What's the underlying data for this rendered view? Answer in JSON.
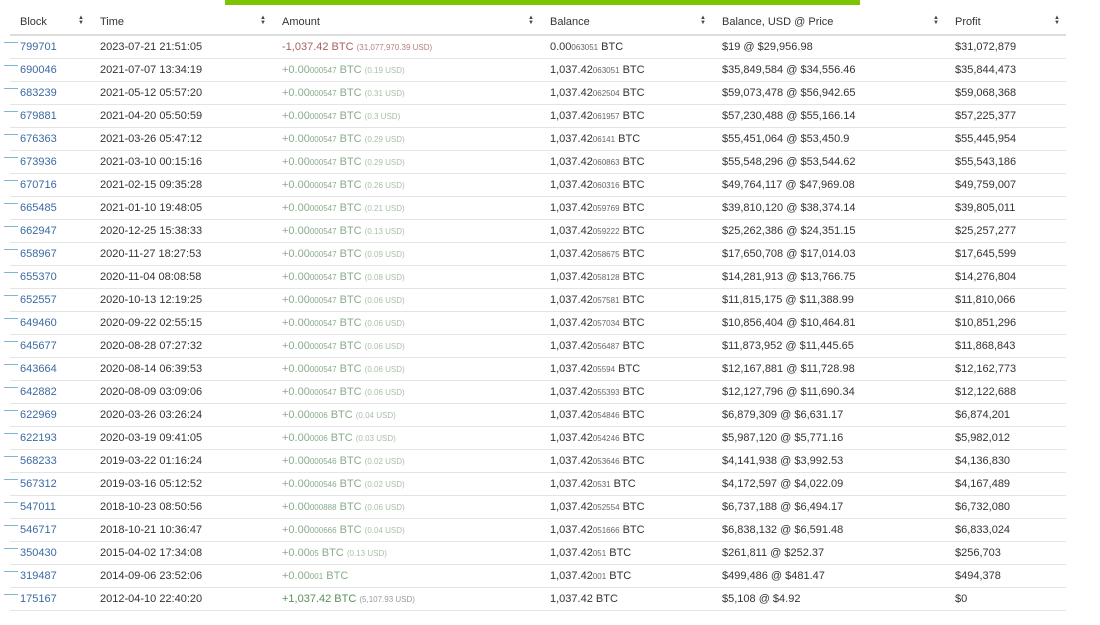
{
  "colors": {
    "accent_bar": "#7bc600",
    "link": "#3b6aa0",
    "positive": "#8aab8a",
    "negative": "#a86060"
  },
  "columns": [
    "Block",
    "Time",
    "Amount",
    "Balance",
    "Balance, USD @ Price",
    "Profit"
  ],
  "sort_icon": "sort-updown-icon",
  "rows": [
    {
      "block": "799701",
      "time": "2023-07-21 21:51:05",
      "amt_main": "-1,037.42",
      "amt_small": "",
      "amt_unit": " BTC",
      "amt_usd": "(31,077,970.39 USD)",
      "type": "neg",
      "bal_main": "0.00",
      "bal_small": "063051",
      "bal_usd": "$19 @ $29,956.98",
      "profit": "$31,072,879"
    },
    {
      "block": "690046",
      "time": "2021-07-07 13:34:19",
      "amt_main": "+0.00",
      "amt_small": "000547",
      "amt_unit": " BTC",
      "amt_usd": "(0.19 USD)",
      "type": "pos",
      "bal_main": "1,037.42",
      "bal_small": "063051",
      "bal_usd": "$35,849,584 @ $34,556.46",
      "profit": "$35,844,473"
    },
    {
      "block": "683239",
      "time": "2021-05-12 05:57:20",
      "amt_main": "+0.00",
      "amt_small": "000547",
      "amt_unit": " BTC",
      "amt_usd": "(0.31 USD)",
      "type": "pos",
      "bal_main": "1,037.42",
      "bal_small": "062504",
      "bal_usd": "$59,073,478 @ $56,942.65",
      "profit": "$59,068,368"
    },
    {
      "block": "679881",
      "time": "2021-04-20 05:50:59",
      "amt_main": "+0.00",
      "amt_small": "000547",
      "amt_unit": " BTC",
      "amt_usd": "(0.3 USD)",
      "type": "pos",
      "bal_main": "1,037.42",
      "bal_small": "061957",
      "bal_usd": "$57,230,488 @ $55,166.14",
      "profit": "$57,225,377"
    },
    {
      "block": "676363",
      "time": "2021-03-26 05:47:12",
      "amt_main": "+0.00",
      "amt_small": "000547",
      "amt_unit": " BTC",
      "amt_usd": "(0.29 USD)",
      "type": "pos",
      "bal_main": "1,037.42",
      "bal_small": "06141",
      "bal_usd": "$55,451,064 @ $53,450.9",
      "profit": "$55,445,954"
    },
    {
      "block": "673936",
      "time": "2021-03-10 00:15:16",
      "amt_main": "+0.00",
      "amt_small": "000547",
      "amt_unit": " BTC",
      "amt_usd": "(0.29 USD)",
      "type": "pos",
      "bal_main": "1,037.42",
      "bal_small": "060863",
      "bal_usd": "$55,548,296 @ $53,544.62",
      "profit": "$55,543,186"
    },
    {
      "block": "670716",
      "time": "2021-02-15 09:35:28",
      "amt_main": "+0.00",
      "amt_small": "000547",
      "amt_unit": " BTC",
      "amt_usd": "(0.26 USD)",
      "type": "pos",
      "bal_main": "1,037.42",
      "bal_small": "060316",
      "bal_usd": "$49,764,117 @ $47,969.08",
      "profit": "$49,759,007"
    },
    {
      "block": "665485",
      "time": "2021-01-10 19:48:05",
      "amt_main": "+0.00",
      "amt_small": "000547",
      "amt_unit": " BTC",
      "amt_usd": "(0.21 USD)",
      "type": "pos",
      "bal_main": "1,037.42",
      "bal_small": "059769",
      "bal_usd": "$39,810,120 @ $38,374.14",
      "profit": "$39,805,011"
    },
    {
      "block": "662947",
      "time": "2020-12-25 15:38:33",
      "amt_main": "+0.00",
      "amt_small": "000547",
      "amt_unit": " BTC",
      "amt_usd": "(0.13 USD)",
      "type": "pos",
      "bal_main": "1,037.42",
      "bal_small": "059222",
      "bal_usd": "$25,262,386 @ $24,351.15",
      "profit": "$25,257,277"
    },
    {
      "block": "658967",
      "time": "2020-11-27 18:27:53",
      "amt_main": "+0.00",
      "amt_small": "000547",
      "amt_unit": " BTC",
      "amt_usd": "(0.09 USD)",
      "type": "pos",
      "bal_main": "1,037.42",
      "bal_small": "058675",
      "bal_usd": "$17,650,708 @ $17,014.03",
      "profit": "$17,645,599"
    },
    {
      "block": "655370",
      "time": "2020-11-04 08:08:58",
      "amt_main": "+0.00",
      "amt_small": "000547",
      "amt_unit": " BTC",
      "amt_usd": "(0.08 USD)",
      "type": "pos",
      "bal_main": "1,037.42",
      "bal_small": "058128",
      "bal_usd": "$14,281,913 @ $13,766.75",
      "profit": "$14,276,804"
    },
    {
      "block": "652557",
      "time": "2020-10-13 12:19:25",
      "amt_main": "+0.00",
      "amt_small": "000547",
      "amt_unit": " BTC",
      "amt_usd": "(0.06 USD)",
      "type": "pos",
      "bal_main": "1,037.42",
      "bal_small": "057581",
      "bal_usd": "$11,815,175 @ $11,388.99",
      "profit": "$11,810,066"
    },
    {
      "block": "649460",
      "time": "2020-09-22 02:55:15",
      "amt_main": "+0.00",
      "amt_small": "000547",
      "amt_unit": " BTC",
      "amt_usd": "(0.06 USD)",
      "type": "pos",
      "bal_main": "1,037.42",
      "bal_small": "057034",
      "bal_usd": "$10,856,404 @ $10,464.81",
      "profit": "$10,851,296"
    },
    {
      "block": "645677",
      "time": "2020-08-28 07:27:32",
      "amt_main": "+0.00",
      "amt_small": "000547",
      "amt_unit": " BTC",
      "amt_usd": "(0.06 USD)",
      "type": "pos",
      "bal_main": "1,037.42",
      "bal_small": "056487",
      "bal_usd": "$11,873,952 @ $11,445.65",
      "profit": "$11,868,843"
    },
    {
      "block": "643664",
      "time": "2020-08-14 06:39:53",
      "amt_main": "+0.00",
      "amt_small": "000547",
      "amt_unit": " BTC",
      "amt_usd": "(0.06 USD)",
      "type": "pos",
      "bal_main": "1,037.42",
      "bal_small": "05594",
      "bal_usd": "$12,167,881 @ $11,728.98",
      "profit": "$12,162,773"
    },
    {
      "block": "642882",
      "time": "2020-08-09 03:09:06",
      "amt_main": "+0.00",
      "amt_small": "000547",
      "amt_unit": " BTC",
      "amt_usd": "(0.06 USD)",
      "type": "pos",
      "bal_main": "1,037.42",
      "bal_small": "055393",
      "bal_usd": "$12,127,796 @ $11,690.34",
      "profit": "$12,122,688"
    },
    {
      "block": "622969",
      "time": "2020-03-26 03:26:24",
      "amt_main": "+0.00",
      "amt_small": "0006",
      "amt_unit": " BTC",
      "amt_usd": "(0.04 USD)",
      "type": "pos",
      "bal_main": "1,037.42",
      "bal_small": "054846",
      "bal_usd": "$6,879,309 @ $6,631.17",
      "profit": "$6,874,201"
    },
    {
      "block": "622193",
      "time": "2020-03-19 09:41:05",
      "amt_main": "+0.00",
      "amt_small": "0006",
      "amt_unit": " BTC",
      "amt_usd": "(0.03 USD)",
      "type": "pos",
      "bal_main": "1,037.42",
      "bal_small": "054246",
      "bal_usd": "$5,987,120 @ $5,771.16",
      "profit": "$5,982,012"
    },
    {
      "block": "568233",
      "time": "2019-03-22 01:16:24",
      "amt_main": "+0.00",
      "amt_small": "000546",
      "amt_unit": " BTC",
      "amt_usd": "(0.02 USD)",
      "type": "pos",
      "bal_main": "1,037.42",
      "bal_small": "053646",
      "bal_usd": "$4,141,938 @ $3,992.53",
      "profit": "$4,136,830"
    },
    {
      "block": "567312",
      "time": "2019-03-16 05:12:52",
      "amt_main": "+0.00",
      "amt_small": "000546",
      "amt_unit": " BTC",
      "amt_usd": "(0.02 USD)",
      "type": "pos",
      "bal_main": "1,037.42",
      "bal_small": "0531",
      "bal_usd": "$4,172,597 @ $4,022.09",
      "profit": "$4,167,489"
    },
    {
      "block": "547011",
      "time": "2018-10-23 08:50:56",
      "amt_main": "+0.00",
      "amt_small": "000888",
      "amt_unit": " BTC",
      "amt_usd": "(0.06 USD)",
      "type": "pos",
      "bal_main": "1,037.42",
      "bal_small": "052554",
      "bal_usd": "$6,737,188 @ $6,494.17",
      "profit": "$6,732,080"
    },
    {
      "block": "546717",
      "time": "2018-10-21 10:36:47",
      "amt_main": "+0.00",
      "amt_small": "000666",
      "amt_unit": " BTC",
      "amt_usd": "(0.04 USD)",
      "type": "pos",
      "bal_main": "1,037.42",
      "bal_small": "051666",
      "bal_usd": "$6,838,132 @ $6,591.48",
      "profit": "$6,833,024"
    },
    {
      "block": "350430",
      "time": "2015-04-02 17:34:08",
      "amt_main": "+0.00",
      "amt_small": "05",
      "amt_unit": " BTC",
      "amt_usd": "(0.13 USD)",
      "type": "pos",
      "bal_main": "1,037.42",
      "bal_small": "051",
      "bal_usd": "$261,811 @ $252.37",
      "profit": "$256,703"
    },
    {
      "block": "319487",
      "time": "2014-09-06 23:52:06",
      "amt_main": "+0.00",
      "amt_small": "001",
      "amt_unit": " BTC",
      "amt_usd": "",
      "type": "pos",
      "bal_main": "1,037.42",
      "bal_small": "001",
      "bal_usd": "$499,486 @ $481.47",
      "profit": "$494,378"
    },
    {
      "block": "175167",
      "time": "2012-04-10 22:40:20",
      "amt_main": "+1,037.42",
      "amt_small": "",
      "amt_unit": " BTC",
      "amt_usd": "(5,107.93 USD)",
      "type": "big",
      "bal_main": "1,037.42",
      "bal_small": "",
      "bal_usd": "$5,108 @ $4.92",
      "profit": "$0"
    }
  ]
}
